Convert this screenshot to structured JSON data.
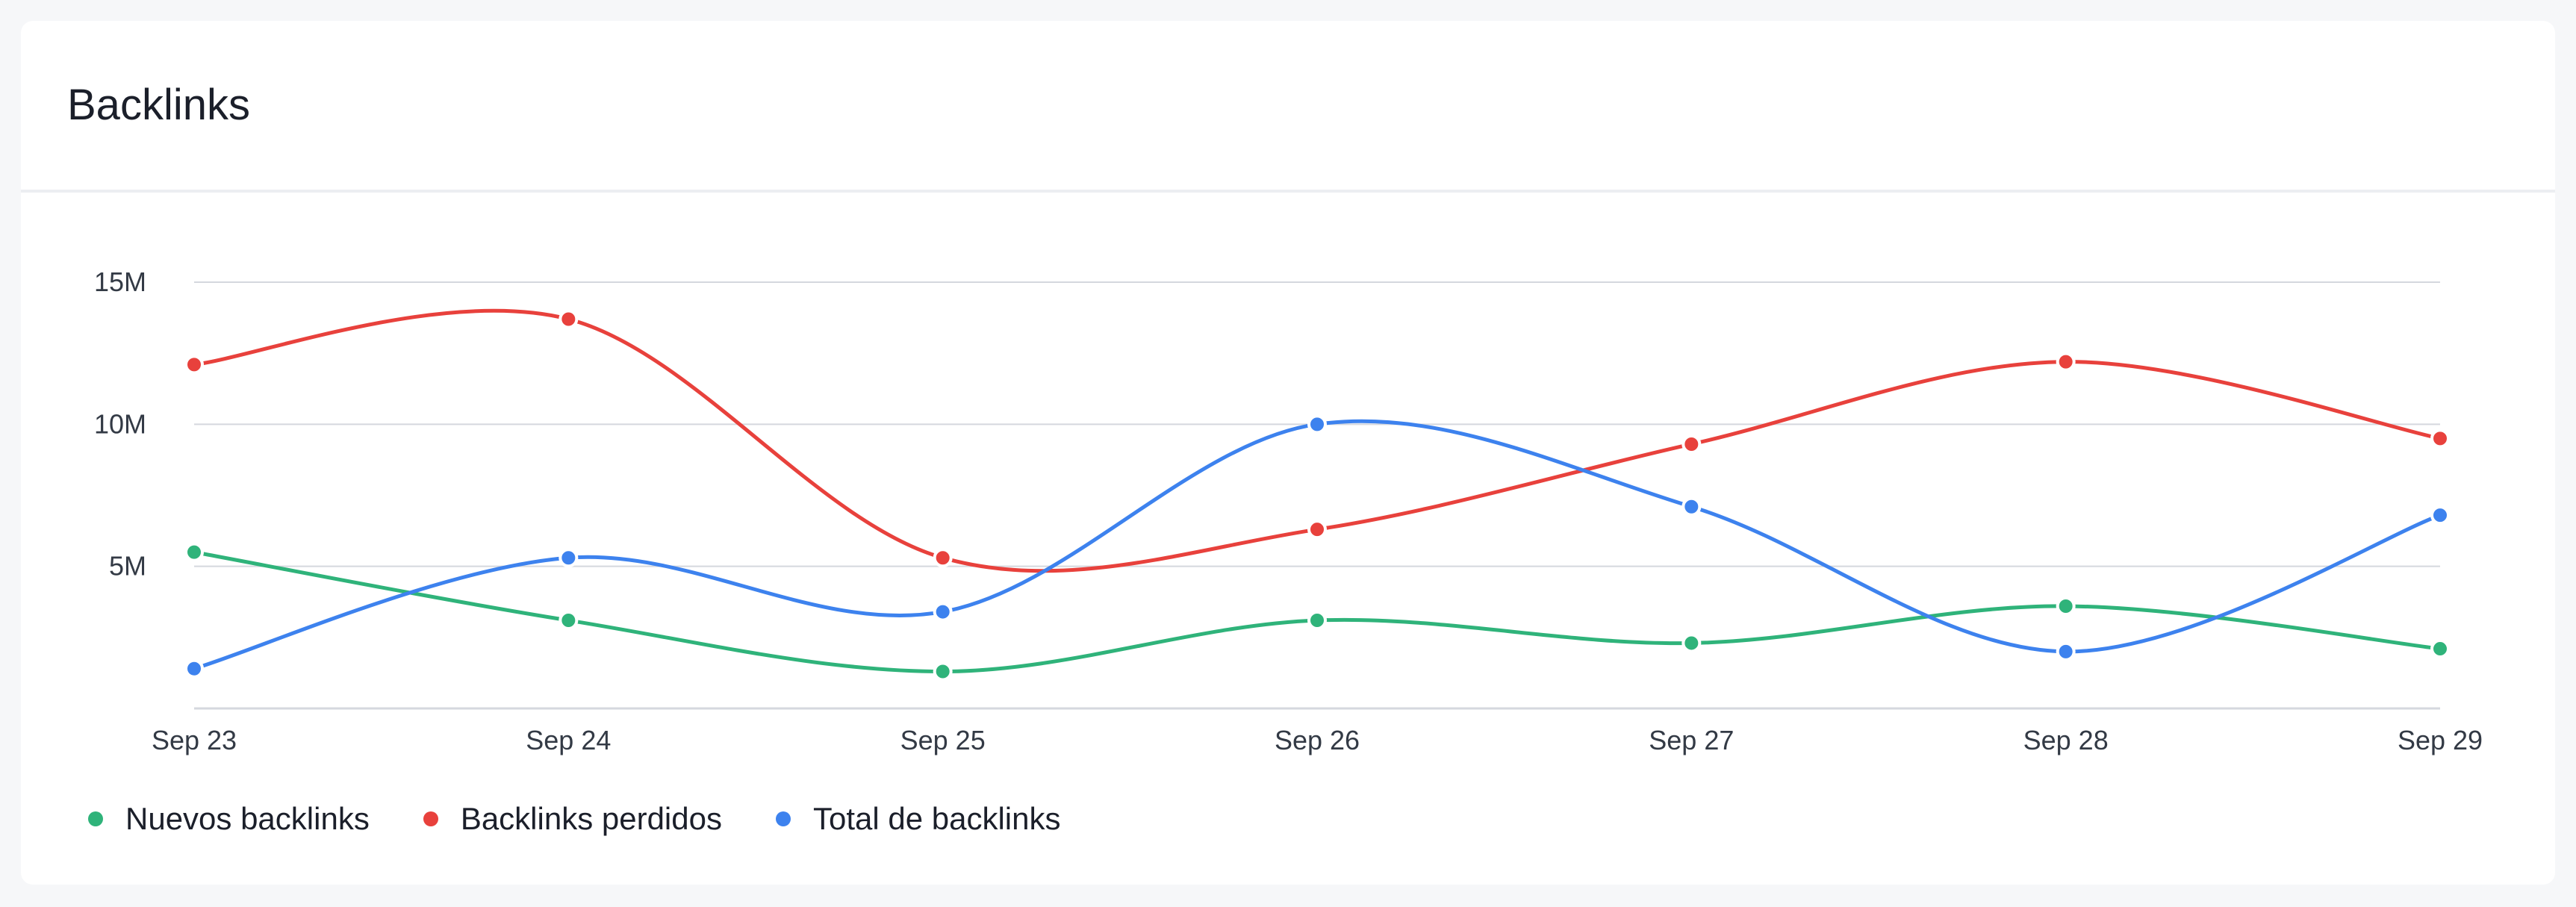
{
  "card": {
    "title": "Backlinks"
  },
  "colors": {
    "nuevos": "#2fb37a",
    "perdidos": "#e8413c",
    "total": "#3d82ee",
    "grid": "#d5d8de",
    "axis_text": "#333a45"
  },
  "legend": {
    "items": [
      {
        "label": "Nuevos backlinks",
        "color": "#2fb37a"
      },
      {
        "label": "Backlinks perdidos",
        "color": "#e8413c"
      },
      {
        "label": "Total de backlinks",
        "color": "#3d82ee"
      }
    ]
  },
  "chart_data": {
    "type": "line",
    "x": [
      "Sep 23",
      "Sep 24",
      "Sep 25",
      "Sep 26",
      "Sep 27",
      "Sep 28",
      "Sep 29"
    ],
    "y_ticks": [
      5,
      10,
      15
    ],
    "y_tick_labels": [
      "5M",
      "10M",
      "15M"
    ],
    "ylim": [
      0,
      15
    ],
    "y_unit": "M",
    "grid": true,
    "legend_position": "bottom-left",
    "series": [
      {
        "name": "Nuevos backlinks",
        "color": "#2fb37a",
        "values": [
          5.5,
          3.1,
          1.3,
          3.1,
          2.3,
          3.6,
          2.1
        ]
      },
      {
        "name": "Backlinks perdidos",
        "color": "#e8413c",
        "values": [
          12.1,
          13.7,
          5.3,
          6.3,
          9.3,
          12.2,
          9.5
        ]
      },
      {
        "name": "Total de backlinks",
        "color": "#3d82ee",
        "values": [
          1.4,
          5.3,
          3.4,
          10.0,
          7.1,
          2.0,
          6.8
        ]
      }
    ]
  }
}
